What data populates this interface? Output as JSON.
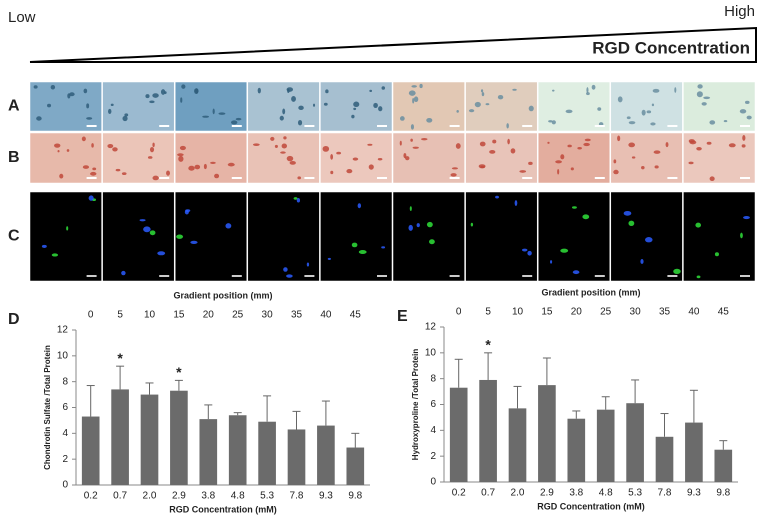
{
  "header": {
    "low": "Low",
    "high": "High",
    "gradient_label": "RGD Concentration"
  },
  "image_rows": [
    "A",
    "B",
    "C"
  ],
  "chart_data": [
    {
      "type": "bar",
      "panel": "D",
      "ylabel": "Chondrotin Sulfate /Total Protein",
      "xlabel": "RGD Concentration (mM)",
      "x2label": "Gradient position (mm)",
      "categories": [
        "0.2",
        "0.7",
        "2.0",
        "2.9",
        "3.8",
        "4.8",
        "5.3",
        "7.8",
        "9.3",
        "9.8"
      ],
      "values": [
        5.3,
        7.4,
        7.0,
        7.3,
        5.1,
        5.4,
        4.9,
        4.3,
        4.6,
        2.9
      ],
      "errors": [
        2.4,
        1.8,
        0.9,
        0.8,
        1.1,
        0.2,
        2.0,
        1.4,
        1.9,
        1.1
      ],
      "color": "#6b6b6b",
      "ylim": [
        0,
        12
      ],
      "yticks": [
        0,
        2,
        4,
        6,
        8,
        10,
        12
      ],
      "x2lim": [
        0,
        45
      ],
      "x2ticks": [
        0,
        5,
        10,
        15,
        20,
        25,
        30,
        35,
        40,
        45
      ],
      "annotations": [
        {
          "text": "*",
          "category": "0.7"
        },
        {
          "text": "*",
          "category": "2.9"
        }
      ]
    },
    {
      "type": "bar",
      "panel": "E",
      "ylabel": "Hydroxyproline /Total Protein",
      "xlabel": "RGD Concentration (mM)",
      "x2label": "Gradient position (mm)",
      "categories": [
        "0.2",
        "0.7",
        "2.0",
        "2.9",
        "3.8",
        "4.8",
        "5.3",
        "7.8",
        "9.3",
        "9.8"
      ],
      "values": [
        7.3,
        7.9,
        5.7,
        7.5,
        4.9,
        5.6,
        6.1,
        3.5,
        4.6,
        2.5
      ],
      "errors": [
        2.2,
        2.1,
        1.7,
        2.1,
        0.6,
        1.0,
        1.8,
        1.8,
        2.5,
        0.7
      ],
      "color": "#6b6b6b",
      "ylim": [
        0,
        12
      ],
      "yticks": [
        0,
        2,
        4,
        6,
        8,
        10,
        12
      ],
      "x2lim": [
        0,
        45
      ],
      "x2ticks": [
        0,
        5,
        10,
        15,
        20,
        25,
        30,
        35,
        40,
        45
      ],
      "annotations": [
        {
          "text": "*",
          "category": "0.7"
        }
      ]
    }
  ]
}
